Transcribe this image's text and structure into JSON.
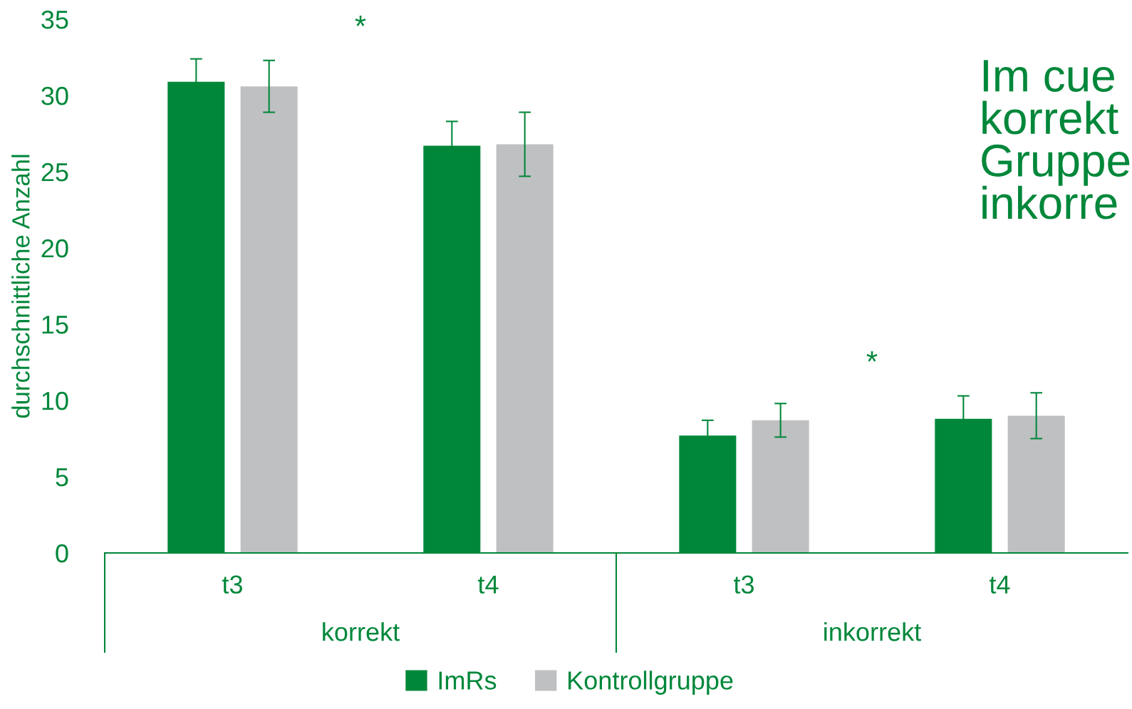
{
  "chart_data": {
    "type": "bar",
    "ylabel": "durchschnittliche Anzahl",
    "categories": [
      "t3",
      "t4",
      "t3",
      "t4"
    ],
    "series": [
      {
        "name": "ImRs",
        "color": "#00873a",
        "values": [
          30.9,
          26.7,
          7.7,
          8.8
        ],
        "errors": [
          1.5,
          1.6,
          1.0,
          1.5
        ]
      },
      {
        "name": "Kontrollgruppe",
        "color": "#bfc0c2",
        "values": [
          30.6,
          26.8,
          8.7,
          9.0
        ],
        "errors": [
          1.7,
          2.1,
          1.1,
          1.5
        ]
      }
    ],
    "ylim": [
      0,
      35
    ],
    "yticks": [
      0,
      5,
      10,
      15,
      20,
      25,
      30,
      35
    ],
    "grid": false,
    "legend": "bottom",
    "annotations": [
      "*",
      "*",
      "korrekt",
      "inkorrekt",
      "Im cue\nkorrekt\nGruppe\ninkorre"
    ]
  }
}
